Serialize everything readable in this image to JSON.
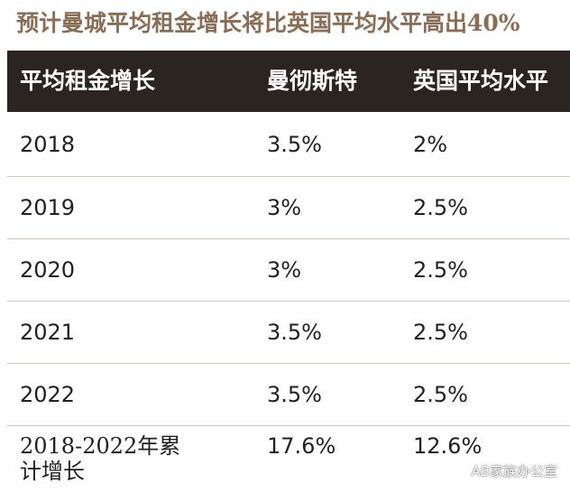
{
  "title": "预计曼城平均租金增长将比英国平均水平高出40%",
  "chart_data": {
    "type": "table",
    "columns": [
      "平均租金增长",
      "曼彻斯特",
      "英国平均水平"
    ],
    "rows": [
      [
        "2018",
        "3.5%",
        "2%"
      ],
      [
        "2019",
        "3%",
        "2.5%"
      ],
      [
        "2020",
        "3%",
        "2.5%"
      ],
      [
        "2021",
        "3.5%",
        "2.5%"
      ],
      [
        "2022",
        "3.5%",
        "2.5%"
      ],
      [
        "2018-2022年累计增长",
        "17.6%",
        "12.6%"
      ]
    ]
  },
  "colors": {
    "title": "#8a6d55",
    "header_bg": "#2b2421",
    "header_text": "#ffffff",
    "row_separator": "#cfc7c0"
  },
  "watermark": {
    "icon": "wechat-icon",
    "text": "AB家族办公室"
  }
}
